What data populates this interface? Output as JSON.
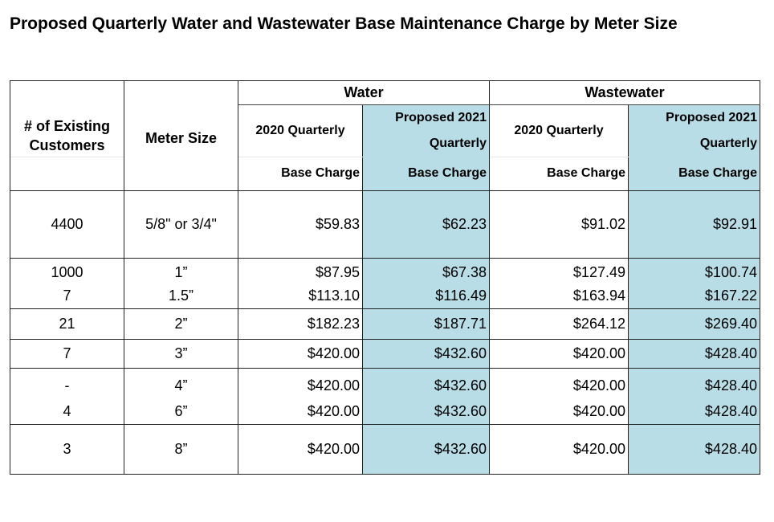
{
  "title": "Proposed Quarterly Water and Wastewater Base Maintenance Charge by Meter Size",
  "headers": {
    "customers_line1": "# of Existing",
    "customers_line2": "Customers",
    "meter_size": "Meter Size",
    "water": "Water",
    "wastewater": "Wastewater",
    "water_2020": "2020 Quarterly",
    "water_proposed_line1": "Proposed 2021",
    "water_proposed_line2": "Quarterly",
    "wastewater_2020": "2020 Quarterly",
    "wastewater_proposed_line1": "Proposed 2021",
    "wastewater_proposed_line2": "Quarterly",
    "base_charge": "Base Charge"
  },
  "rows": [
    {
      "customers": "4400",
      "meter": "5/8\" or 3/4\"",
      "water_2020": "$59.83",
      "water_2021": "$62.23",
      "ww_2020": "$91.02",
      "ww_2021": "$92.91"
    },
    {
      "customers": "1000",
      "meter": "1”",
      "water_2020": "$87.95",
      "water_2021": "$67.38",
      "ww_2020": "$127.49",
      "ww_2021": "$100.74"
    },
    {
      "customers": "7",
      "meter": "1.5”",
      "water_2020": "$113.10",
      "water_2021": "$116.49",
      "ww_2020": "$163.94",
      "ww_2021": "$167.22"
    },
    {
      "customers": "21",
      "meter": "2”",
      "water_2020": "$182.23",
      "water_2021": "$187.71",
      "ww_2020": "$264.12",
      "ww_2021": "$269.40"
    },
    {
      "customers": "7",
      "meter": "3”",
      "water_2020": "$420.00",
      "water_2021": "$432.60",
      "ww_2020": "$420.00",
      "ww_2021": "$428.40"
    },
    {
      "customers": "-",
      "meter": "4”",
      "water_2020": "$420.00",
      "water_2021": "$432.60",
      "ww_2020": "$420.00",
      "ww_2021": "$428.40"
    },
    {
      "customers": "4",
      "meter": "6”",
      "water_2020": "$420.00",
      "water_2021": "$432.60",
      "ww_2020": "$420.00",
      "ww_2021": "$428.40"
    },
    {
      "customers": "3",
      "meter": "8”",
      "water_2020": "$420.00",
      "water_2021": "$432.60",
      "ww_2020": "$420.00",
      "ww_2021": "$428.40"
    }
  ]
}
